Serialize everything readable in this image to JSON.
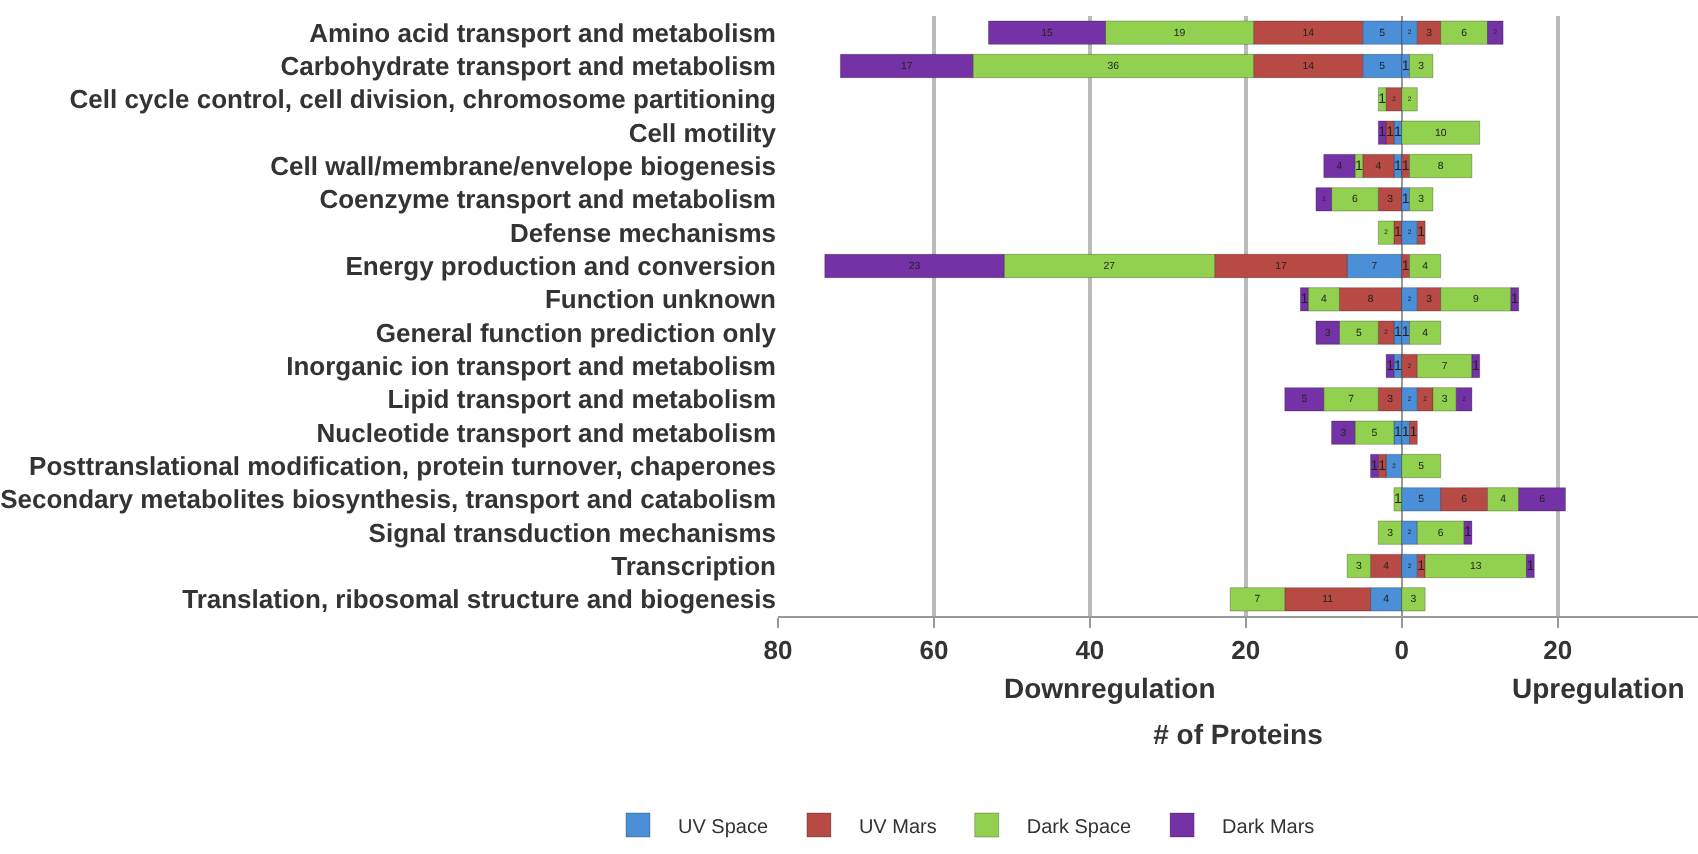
{
  "chart_data": {
    "type": "bar",
    "orientation": "horizontal",
    "xlabel": "# of Proteins",
    "annotations": [
      "Downregulation",
      "Upregulation"
    ],
    "categories": [
      "Amino acid transport and metabolism",
      "Carbohydrate transport and metabolism",
      "Cell cycle control, cell division, chromosome partitioning",
      "Cell motility",
      "Cell wall/membrane/envelope biogenesis",
      "Coenzyme transport and metabolism",
      "Defense mechanisms",
      "Energy production and conversion",
      "Function unknown",
      "General function prediction only",
      "Inorganic ion transport and metabolism",
      "Lipid transport and metabolism",
      "Nucleotide transport and metabolism",
      "Posttranslational modification, protein turnover, chaperones",
      "Secondary metabolites biosynthesis, transport and catabolism",
      "Signal transduction mechanisms",
      "Transcription",
      "Translation, ribosomal structure and biogenesis"
    ],
    "series": [
      {
        "name": "UV Space",
        "color": "#4a8fd8",
        "values": [
          5,
          5,
          null,
          1,
          1,
          null,
          null,
          7,
          null,
          1,
          1,
          null,
          1,
          2,
          null,
          null,
          null,
          4
        ],
        "base": [
          -5,
          -5,
          null,
          -1,
          -1,
          null,
          null,
          -7,
          null,
          -1,
          -1,
          null,
          -1,
          -2,
          null,
          null,
          null,
          -4
        ]
      },
      {
        "name": "UV Mars",
        "color": "#b84a45",
        "values": [
          14,
          14,
          2,
          1,
          4,
          3,
          1,
          17,
          8,
          2,
          null,
          3,
          null,
          1,
          null,
          null,
          4,
          11
        ],
        "base": [
          -19,
          -19,
          -2,
          -2,
          -5,
          -3,
          -1,
          -24,
          -8,
          -3,
          null,
          -3,
          null,
          -3,
          null,
          null,
          -4,
          -15
        ]
      },
      {
        "name": "Dark Space",
        "color": "#92d050",
        "values": [
          19,
          36,
          1,
          null,
          1,
          6,
          2,
          27,
          4,
          5,
          null,
          7,
          5,
          null,
          1,
          3,
          3,
          7
        ],
        "base": [
          -38,
          -55,
          -3,
          null,
          -6,
          -9,
          -3,
          -51,
          -12,
          -8,
          null,
          -10,
          -6,
          null,
          -1,
          -3,
          -7,
          -22
        ]
      },
      {
        "name": "Dark Mars",
        "color": "#7432a6",
        "values": [
          15,
          17,
          null,
          1,
          4,
          2,
          null,
          23,
          1,
          3,
          1,
          5,
          3,
          1,
          null,
          null,
          null,
          null
        ],
        "base": [
          -53,
          -72,
          null,
          -3,
          -10,
          -11,
          null,
          -74,
          -13,
          -11,
          -2,
          -15,
          -9,
          -4,
          null,
          null,
          null,
          null
        ]
      },
      {
        "color": "#4a8fd8",
        "values": [
          2,
          1,
          null,
          null,
          null,
          1,
          2,
          null,
          2,
          1,
          null,
          2,
          1,
          null,
          5,
          2,
          2,
          null
        ],
        "base": [
          0,
          0,
          null,
          null,
          null,
          0,
          0,
          null,
          0,
          0,
          null,
          0,
          0,
          null,
          0,
          0,
          0,
          null
        ]
      },
      {
        "color": "#b84a45",
        "values": [
          3,
          null,
          null,
          null,
          1,
          null,
          1,
          1,
          3,
          null,
          2,
          2,
          1,
          null,
          6,
          null,
          1,
          null
        ],
        "base": [
          2,
          null,
          null,
          null,
          0,
          null,
          2,
          0,
          2,
          null,
          0,
          2,
          1,
          null,
          5,
          null,
          2,
          null
        ]
      },
      {
        "color": "#92d050",
        "values": [
          6,
          3,
          2,
          10,
          8,
          3,
          null,
          4,
          9,
          4,
          7,
          3,
          null,
          5,
          4,
          6,
          13,
          3
        ],
        "base": [
          5,
          1,
          0,
          0,
          1,
          1,
          null,
          1,
          5,
          1,
          2,
          4,
          null,
          0,
          11,
          2,
          3,
          0
        ]
      },
      {
        "color": "#7432a6",
        "values": [
          2,
          null,
          null,
          null,
          null,
          null,
          null,
          null,
          1,
          null,
          1,
          2,
          null,
          null,
          6,
          1,
          1,
          null
        ],
        "base": [
          11,
          null,
          null,
          null,
          null,
          null,
          null,
          null,
          14,
          null,
          9,
          7,
          null,
          null,
          15,
          8,
          16,
          null
        ]
      }
    ],
    "data_labels": true,
    "xlim": [
      -80,
      38
    ],
    "xticks": [
      {
        "value": -80,
        "label": "80"
      },
      {
        "value": -60,
        "label": "60"
      },
      {
        "value": -40,
        "label": "40"
      },
      {
        "value": -20,
        "label": "20"
      },
      0,
      20
    ],
    "grid": "x",
    "legend": "bottom"
  }
}
